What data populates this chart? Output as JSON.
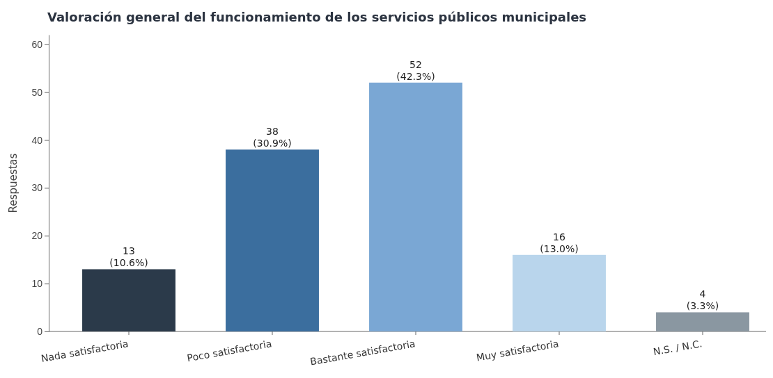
{
  "chart_data": {
    "type": "bar",
    "title": "Valoración general del funcionamiento de los servicios públicos municipales",
    "ylabel": "Respuestas",
    "categories": [
      "Nada satisfactoria",
      "Poco satisfactoria",
      "Bastante satisfactoria",
      "Muy satisfactoria",
      "N.S. / N.C."
    ],
    "values": [
      13,
      38,
      52,
      16,
      4
    ],
    "colors": [
      "#2b3a4a",
      "#3b6e9e",
      "#7aa7d4",
      "#b9d5ec",
      "#8a97a1"
    ],
    "value_labels": [
      "13\n(10.6%)",
      "38\n(30.9%)",
      "52\n(42.3%)",
      "16\n(13.0%)",
      "4\n(3.3%)"
    ],
    "ylim": [
      0,
      62
    ],
    "yticks": [
      0,
      10,
      20,
      30,
      40,
      50,
      60
    ]
  }
}
